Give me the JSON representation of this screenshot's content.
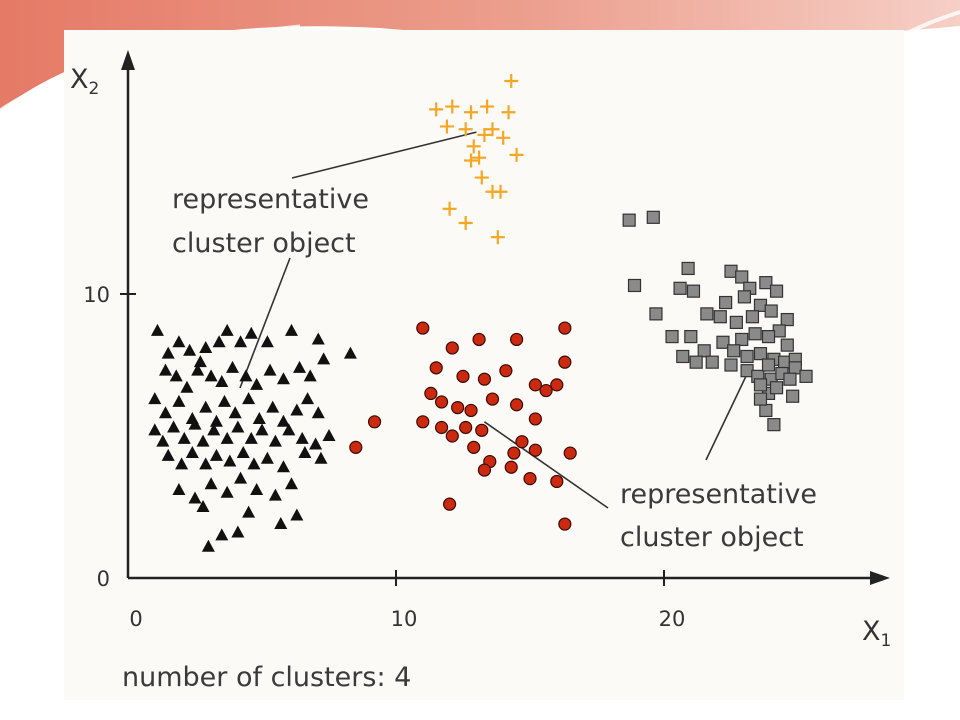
{
  "colors": {
    "triangles": "#111111",
    "circles": "#cc2a10",
    "plus": "#f5a623",
    "squares": "#8a8a8a",
    "axis": "#222222",
    "decoration": "#e27b6a"
  },
  "chart_data": {
    "type": "scatter",
    "title": "",
    "xlabel": "X1",
    "ylabel": "X2",
    "xlim": [
      0,
      28
    ],
    "ylim": [
      0,
      18
    ],
    "x_ticks": [
      0,
      10,
      20
    ],
    "y_ticks": [
      0,
      10
    ],
    "legend": "none",
    "grid": false,
    "annotations": [
      {
        "text_lines": [
          "representative",
          "cluster object"
        ],
        "points_to": [
          13.0,
          15.7
        ]
      },
      {
        "text_lines": [
          "representative",
          "cluster object"
        ],
        "points_to": [
          13.3,
          5.5
        ]
      }
    ],
    "footer": "number of clusters: 4",
    "series": [
      {
        "marker": "triangle",
        "color": "#111111",
        "points": [
          [
            1.1,
            8.7
          ],
          [
            1.5,
            7.9
          ],
          [
            1.9,
            8.3
          ],
          [
            2.3,
            8.0
          ],
          [
            2.7,
            7.6
          ],
          [
            2.9,
            8.1
          ],
          [
            3.4,
            8.3
          ],
          [
            3.7,
            8.7
          ],
          [
            4.2,
            8.3
          ],
          [
            4.6,
            8.6
          ],
          [
            5.2,
            8.3
          ],
          [
            6.1,
            8.7
          ],
          [
            7.1,
            8.4
          ],
          [
            1.4,
            7.3
          ],
          [
            1.8,
            7.1
          ],
          [
            2.2,
            6.7
          ],
          [
            2.6,
            7.3
          ],
          [
            3.1,
            7.1
          ],
          [
            3.5,
            6.9
          ],
          [
            3.9,
            7.4
          ],
          [
            4.4,
            7.1
          ],
          [
            4.8,
            6.8
          ],
          [
            5.3,
            7.3
          ],
          [
            5.8,
            7.0
          ],
          [
            6.4,
            7.4
          ],
          [
            6.8,
            7.1
          ],
          [
            7.3,
            7.7
          ],
          [
            8.3,
            7.9
          ],
          [
            1.0,
            6.3
          ],
          [
            1.4,
            5.8
          ],
          [
            1.9,
            6.2
          ],
          [
            2.4,
            5.6
          ],
          [
            2.9,
            6.0
          ],
          [
            3.3,
            5.5
          ],
          [
            3.6,
            6.2
          ],
          [
            4.0,
            5.8
          ],
          [
            4.5,
            6.3
          ],
          [
            4.9,
            5.6
          ],
          [
            5.4,
            6.0
          ],
          [
            5.8,
            5.5
          ],
          [
            6.3,
            5.9
          ],
          [
            6.7,
            6.3
          ],
          [
            7.1,
            5.8
          ],
          [
            1.0,
            5.2
          ],
          [
            1.3,
            4.8
          ],
          [
            1.7,
            5.3
          ],
          [
            2.1,
            4.9
          ],
          [
            2.5,
            5.4
          ],
          [
            2.8,
            4.8
          ],
          [
            3.2,
            5.2
          ],
          [
            3.7,
            4.9
          ],
          [
            4.1,
            5.3
          ],
          [
            4.6,
            4.9
          ],
          [
            5.0,
            5.2
          ],
          [
            5.5,
            4.8
          ],
          [
            6.0,
            5.2
          ],
          [
            6.5,
            4.9
          ],
          [
            7.0,
            4.7
          ],
          [
            7.5,
            5.0
          ],
          [
            1.5,
            4.3
          ],
          [
            2.0,
            4.0
          ],
          [
            2.4,
            4.4
          ],
          [
            2.9,
            4.0
          ],
          [
            3.3,
            4.3
          ],
          [
            3.8,
            4.1
          ],
          [
            4.3,
            4.4
          ],
          [
            4.7,
            4.0
          ],
          [
            5.2,
            4.2
          ],
          [
            5.8,
            3.9
          ],
          [
            6.6,
            4.4
          ],
          [
            7.2,
            4.2
          ],
          [
            1.9,
            3.1
          ],
          [
            2.5,
            2.8
          ],
          [
            3.1,
            3.3
          ],
          [
            3.7,
            3.0
          ],
          [
            4.2,
            3.5
          ],
          [
            4.8,
            3.1
          ],
          [
            5.5,
            2.9
          ],
          [
            6.1,
            3.3
          ],
          [
            2.8,
            2.5
          ],
          [
            4.5,
            2.3
          ],
          [
            5.7,
            1.9
          ],
          [
            6.3,
            2.2
          ],
          [
            3.5,
            1.5
          ],
          [
            3.0,
            1.1
          ],
          [
            4.1,
            1.6
          ]
        ]
      },
      {
        "marker": "circle",
        "color": "#cc2a10",
        "points": [
          [
            11.0,
            8.8
          ],
          [
            12.1,
            8.1
          ],
          [
            13.1,
            8.4
          ],
          [
            14.5,
            8.4
          ],
          [
            16.3,
            8.8
          ],
          [
            11.5,
            7.4
          ],
          [
            12.5,
            7.1
          ],
          [
            13.3,
            7.0
          ],
          [
            14.1,
            7.3
          ],
          [
            15.2,
            6.8
          ],
          [
            16.3,
            7.6
          ],
          [
            11.3,
            6.5
          ],
          [
            11.7,
            6.2
          ],
          [
            12.3,
            6.0
          ],
          [
            12.8,
            5.9
          ],
          [
            13.6,
            6.3
          ],
          [
            14.5,
            6.1
          ],
          [
            15.6,
            6.6
          ],
          [
            16.0,
            6.8
          ],
          [
            11.0,
            5.5
          ],
          [
            11.7,
            5.3
          ],
          [
            12.1,
            5.0
          ],
          [
            12.6,
            5.3
          ],
          [
            13.2,
            5.2
          ],
          [
            14.7,
            4.8
          ],
          [
            15.2,
            5.6
          ],
          [
            12.9,
            4.6
          ],
          [
            13.5,
            4.1
          ],
          [
            14.4,
            4.4
          ],
          [
            15.2,
            4.5
          ],
          [
            13.3,
            3.8
          ],
          [
            14.3,
            3.9
          ],
          [
            15.0,
            3.5
          ],
          [
            16.0,
            3.4
          ],
          [
            16.5,
            4.4
          ],
          [
            12.0,
            2.6
          ],
          [
            16.3,
            1.9
          ],
          [
            9.2,
            5.5
          ],
          [
            8.5,
            4.6
          ]
        ]
      },
      {
        "marker": "plus",
        "color": "#f5a623",
        "points": [
          [
            14.3,
            17.5
          ],
          [
            11.5,
            16.5
          ],
          [
            12.1,
            16.6
          ],
          [
            12.8,
            16.4
          ],
          [
            13.4,
            16.6
          ],
          [
            14.2,
            16.4
          ],
          [
            11.9,
            15.9
          ],
          [
            12.6,
            15.8
          ],
          [
            13.6,
            15.8
          ],
          [
            12.9,
            15.2
          ],
          [
            13.3,
            15.6
          ],
          [
            14.0,
            15.5
          ],
          [
            12.8,
            14.7
          ],
          [
            13.1,
            14.8
          ],
          [
            14.5,
            14.9
          ],
          [
            13.2,
            14.1
          ],
          [
            13.6,
            13.6
          ],
          [
            13.9,
            13.6
          ],
          [
            12.0,
            13.0
          ],
          [
            12.6,
            12.5
          ],
          [
            13.8,
            12.0
          ]
        ]
      },
      {
        "marker": "square",
        "color": "#8a8a8a",
        "points": [
          [
            18.7,
            12.6
          ],
          [
            19.6,
            12.7
          ],
          [
            20.9,
            10.9
          ],
          [
            18.9,
            10.3
          ],
          [
            20.6,
            10.2
          ],
          [
            21.1,
            10.1
          ],
          [
            22.5,
            10.8
          ],
          [
            22.9,
            10.6
          ],
          [
            23.2,
            10.2
          ],
          [
            23.8,
            10.4
          ],
          [
            24.2,
            10.1
          ],
          [
            22.3,
            9.7
          ],
          [
            23.0,
            9.9
          ],
          [
            23.6,
            9.6
          ],
          [
            24.0,
            9.4
          ],
          [
            19.7,
            9.3
          ],
          [
            21.6,
            9.3
          ],
          [
            22.1,
            9.2
          ],
          [
            22.7,
            9.0
          ],
          [
            23.3,
            9.2
          ],
          [
            24.6,
            9.1
          ],
          [
            24.3,
            8.7
          ],
          [
            23.9,
            8.5
          ],
          [
            23.4,
            8.6
          ],
          [
            22.9,
            8.4
          ],
          [
            24.6,
            8.2
          ],
          [
            20.3,
            8.5
          ],
          [
            21.0,
            8.5
          ],
          [
            22.2,
            8.3
          ],
          [
            22.6,
            8.0
          ],
          [
            21.5,
            8.0
          ],
          [
            23.1,
            7.8
          ],
          [
            23.6,
            7.9
          ],
          [
            24.1,
            7.7
          ],
          [
            24.5,
            7.6
          ],
          [
            24.9,
            7.7
          ],
          [
            21.8,
            7.6
          ],
          [
            22.5,
            7.5
          ],
          [
            23.1,
            7.3
          ],
          [
            23.5,
            7.1
          ],
          [
            24.0,
            7.0
          ],
          [
            24.4,
            7.2
          ],
          [
            24.9,
            7.4
          ],
          [
            25.3,
            7.1
          ],
          [
            21.2,
            7.6
          ],
          [
            20.7,
            7.8
          ],
          [
            24.7,
            7.0
          ],
          [
            23.9,
            6.5
          ],
          [
            24.8,
            6.4
          ],
          [
            23.6,
            6.8
          ],
          [
            24.2,
            6.7
          ],
          [
            23.8,
            5.9
          ],
          [
            24.1,
            5.4
          ],
          [
            23.6,
            6.3
          ],
          [
            23.9,
            7.5
          ]
        ]
      }
    ]
  }
}
